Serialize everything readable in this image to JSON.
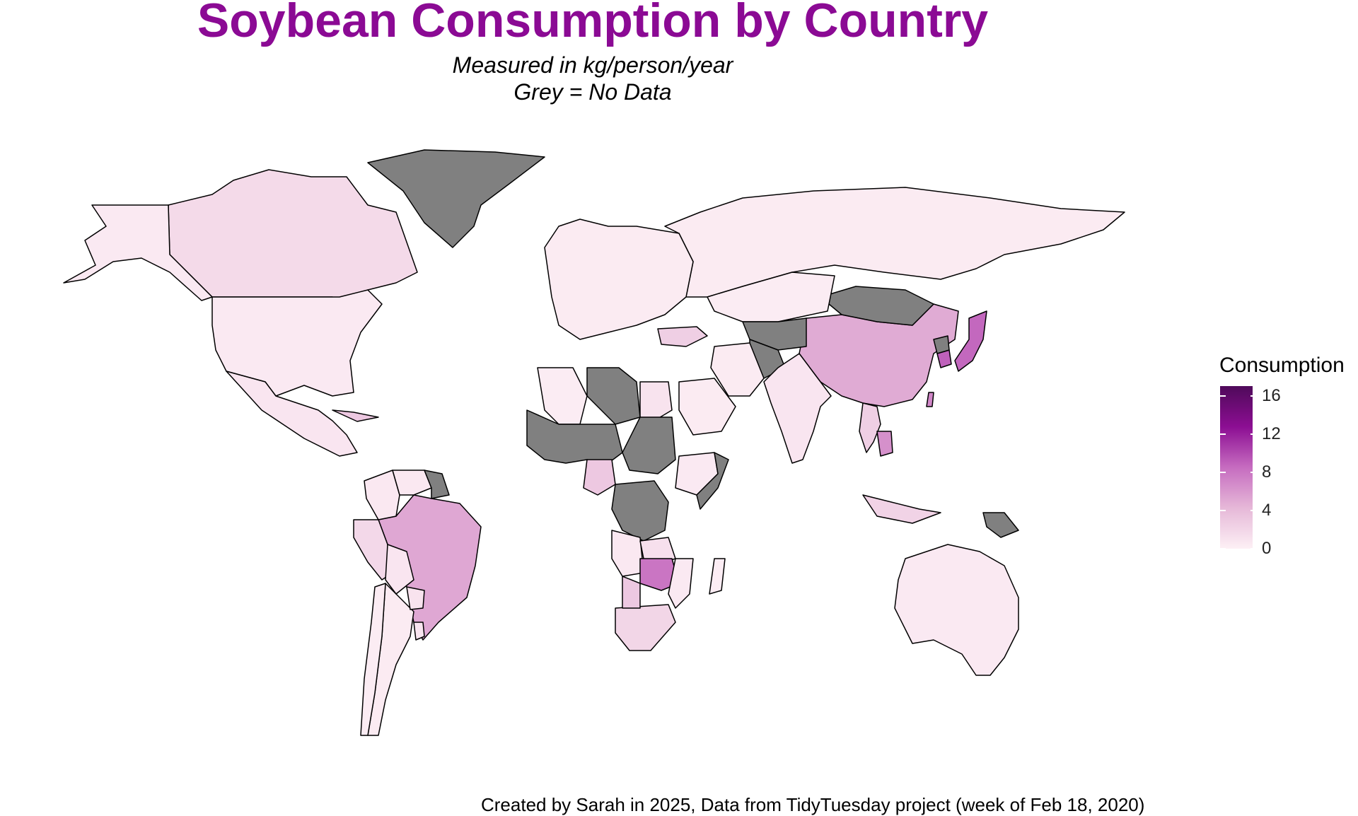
{
  "title": "Soybean Consumption by Country",
  "subtitle_line1": "Measured in kg/person/year",
  "subtitle_line2": "Grey = No Data",
  "caption": "Created by Sarah in 2025, Data from TidyTuesday project (week of Feb 18, 2020)",
  "legend": {
    "title": "Consumption",
    "ticks": [
      "16",
      "12",
      "8",
      "4",
      "0"
    ],
    "range": [
      0,
      17
    ],
    "gradient_colors": [
      "#fdf0f5",
      "#e6b8d8",
      "#c66cc0",
      "#8c0e93",
      "#4f0a5a"
    ]
  },
  "colors": {
    "title": "#8b0a94",
    "no_data": "#808080",
    "border": "#000000"
  },
  "chart_data": {
    "type": "choropleth",
    "title": "Soybean Consumption by Country",
    "subtitle": "Measured in kg/person/year",
    "value_unit": "kg/person/year",
    "scale": [
      0,
      17
    ],
    "countries": [
      {
        "name": "Canada",
        "value": 1.7
      },
      {
        "name": "United States",
        "value": 0.5
      },
      {
        "name": "Alaska",
        "value": 0.5
      },
      {
        "name": "Greenland",
        "value": null
      },
      {
        "name": "Mexico",
        "value": 0.8
      },
      {
        "name": "Cuba",
        "value": 3.0
      },
      {
        "name": "Brazil",
        "value": 5.2
      },
      {
        "name": "Argentina",
        "value": 0.4
      },
      {
        "name": "Colombia",
        "value": 0.6
      },
      {
        "name": "Peru",
        "value": 1.8
      },
      {
        "name": "Bolivia",
        "value": 0.8
      },
      {
        "name": "Chile",
        "value": 0.3
      },
      {
        "name": "Venezuela",
        "value": 0.6
      },
      {
        "name": "Guyana",
        "value": null
      },
      {
        "name": "Paraguay",
        "value": 1.0
      },
      {
        "name": "Uruguay",
        "value": 0.8
      },
      {
        "name": "Russia",
        "value": 0.4
      },
      {
        "name": "China",
        "value": 5.0
      },
      {
        "name": "Mongolia",
        "value": null
      },
      {
        "name": "Kazakhstan",
        "value": 0.3
      },
      {
        "name": "Central Asia",
        "value": null
      },
      {
        "name": "Afghanistan",
        "value": null
      },
      {
        "name": "India",
        "value": 0.8
      },
      {
        "name": "Japan",
        "value": 8.7
      },
      {
        "name": "South Korea",
        "value": 9.0
      },
      {
        "name": "North Korea",
        "value": null
      },
      {
        "name": "Taiwan",
        "value": 7.0
      },
      {
        "name": "Thailand",
        "value": 2.5
      },
      {
        "name": "Cambodia",
        "value": 6.5
      },
      {
        "name": "Indonesia",
        "value": 2.2
      },
      {
        "name": "Papua New Guinea",
        "value": null
      },
      {
        "name": "Australia",
        "value": 0.5
      },
      {
        "name": "Turkey",
        "value": 2.5
      },
      {
        "name": "Europe",
        "value": 0.4
      },
      {
        "name": "Iran",
        "value": 0.4
      },
      {
        "name": "Saudi Arabia",
        "value": 0.4
      },
      {
        "name": "Egypt",
        "value": 1.0
      },
      {
        "name": "Libya",
        "value": null
      },
      {
        "name": "Algeria",
        "value": 0.3
      },
      {
        "name": "Sahel",
        "value": null
      },
      {
        "name": "Sudan",
        "value": null
      },
      {
        "name": "Nigeria",
        "value": 3.0
      },
      {
        "name": "Ethiopia",
        "value": 0.5
      },
      {
        "name": "Somalia",
        "value": null
      },
      {
        "name": "DR Congo",
        "value": null
      },
      {
        "name": "Angola",
        "value": 0.6
      },
      {
        "name": "Zambia",
        "value": 1.2
      },
      {
        "name": "Zimbabwe",
        "value": 8.0
      },
      {
        "name": "Mozambique",
        "value": 0.5
      },
      {
        "name": "South Africa",
        "value": 2.0
      },
      {
        "name": "Botswana",
        "value": 3.0
      },
      {
        "name": "Madagascar",
        "value": 0.2
      }
    ]
  }
}
